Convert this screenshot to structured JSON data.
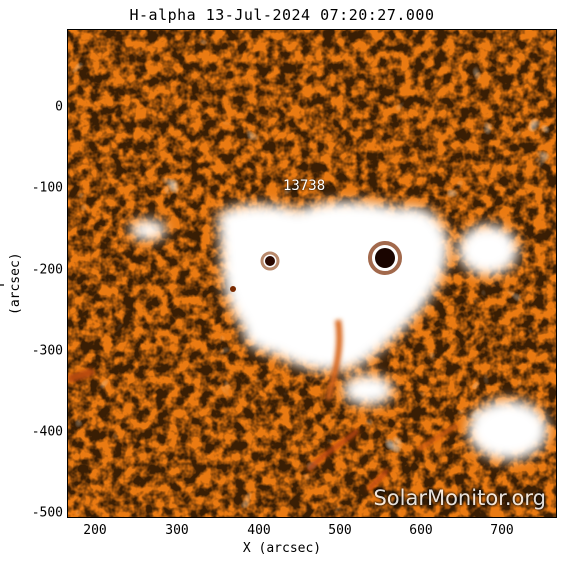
{
  "title": "H-alpha 13-Jul-2024 07:20:27.000",
  "xlabel": "X (arcsec)",
  "ylabel": "Y (arcsec)",
  "x_ticks": [
    "200",
    "300",
    "400",
    "500",
    "600",
    "700"
  ],
  "y_ticks": [
    "0",
    "-100",
    "-200",
    "-300",
    "-400",
    "-500"
  ],
  "region_label": "13738",
  "watermark": "SolarMonitor.org",
  "colors": {
    "background": "#e8730a",
    "bright": "#ffffff",
    "dark": "#000000"
  }
}
